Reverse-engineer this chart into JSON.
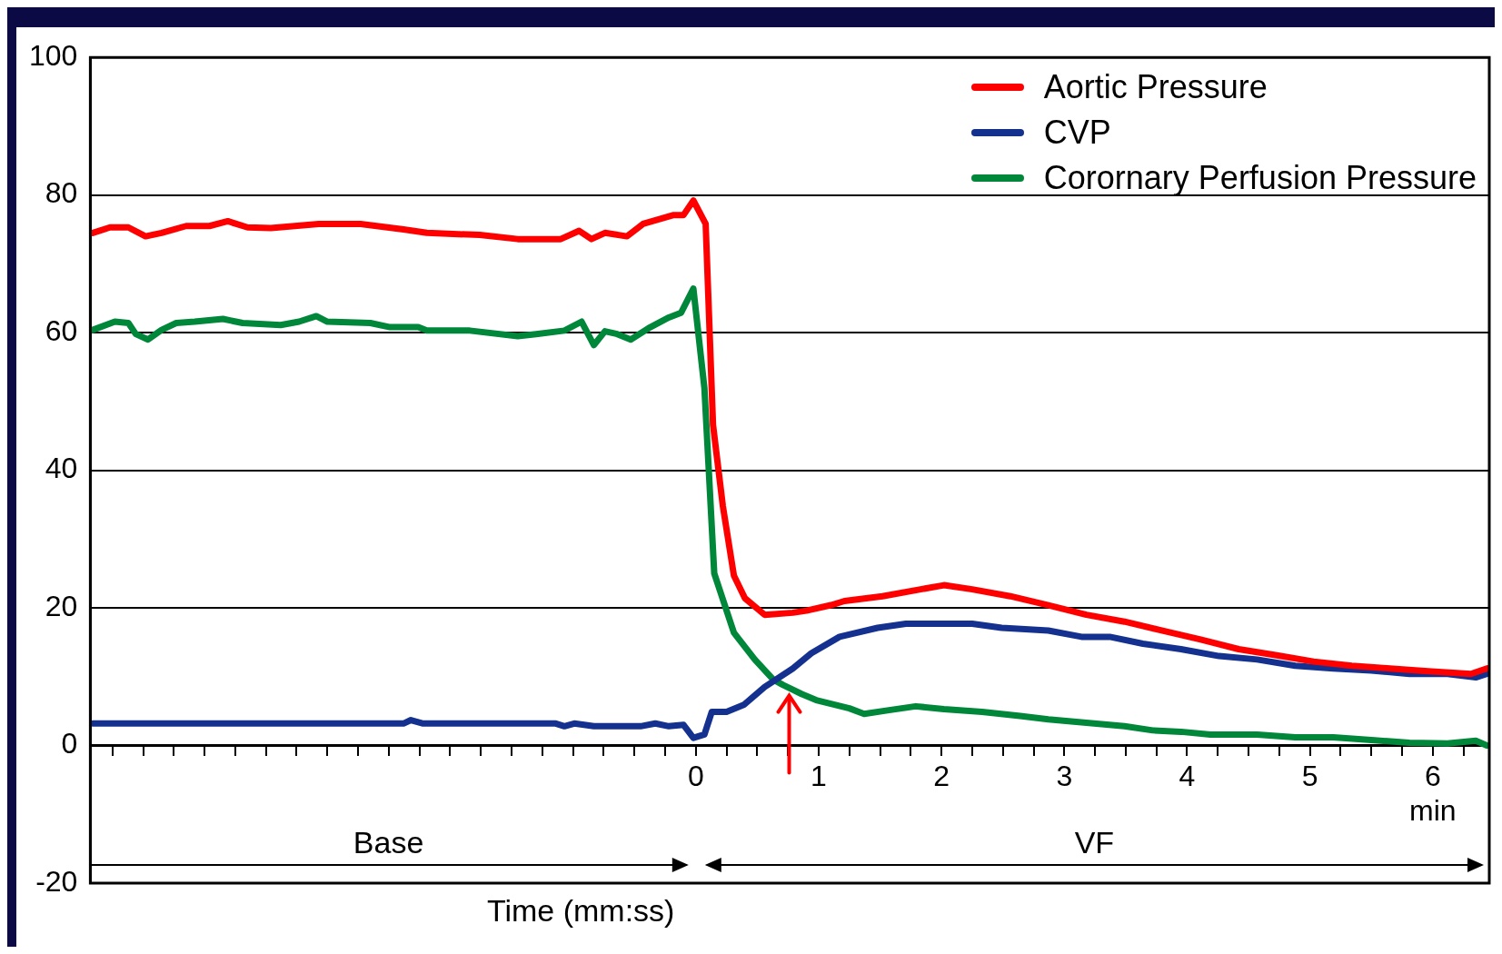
{
  "chart_data": {
    "type": "line",
    "xlabel": "Time (mm:ss)",
    "xlim": [
      -4.93,
      6.46
    ],
    "ylim": [
      -20,
      100
    ],
    "yticks": [
      -20,
      0,
      20,
      40,
      60,
      80,
      100
    ],
    "xticks": [
      {
        "value": -4.75,
        "label": null
      },
      {
        "value": -4.5,
        "label": null
      },
      {
        "value": -4.25,
        "label": null
      },
      {
        "value": -4,
        "label": null
      },
      {
        "value": -3.75,
        "label": null
      },
      {
        "value": -3.5,
        "label": null
      },
      {
        "value": -3.25,
        "label": null
      },
      {
        "value": -3,
        "label": null
      },
      {
        "value": -2.75,
        "label": null
      },
      {
        "value": -2.5,
        "label": null
      },
      {
        "value": -2.25,
        "label": null
      },
      {
        "value": -2,
        "label": null
      },
      {
        "value": -1.75,
        "label": null
      },
      {
        "value": -1.5,
        "label": null
      },
      {
        "value": -1.25,
        "label": null
      },
      {
        "value": -1,
        "label": null
      },
      {
        "value": -0.75,
        "label": null
      },
      {
        "value": -0.5,
        "label": null
      },
      {
        "value": -0.25,
        "label": null
      },
      0,
      {
        "value": 0.25,
        "label": null
      },
      {
        "value": 0.5,
        "label": null
      },
      {
        "value": 0.75,
        "label": null
      },
      1,
      {
        "value": 1.25,
        "label": null
      },
      {
        "value": 1.5,
        "label": null
      },
      {
        "value": 1.75,
        "label": null
      },
      2,
      {
        "value": 2.25,
        "label": null
      },
      {
        "value": 2.5,
        "label": null
      },
      {
        "value": 2.75,
        "label": null
      },
      3,
      {
        "value": 3.25,
        "label": null
      },
      {
        "value": 3.5,
        "label": null
      },
      {
        "value": 3.75,
        "label": null
      },
      4,
      {
        "value": 4.25,
        "label": null
      },
      {
        "value": 4.5,
        "label": null
      },
      {
        "value": 4.75,
        "label": null
      },
      5,
      {
        "value": 5.25,
        "label": null
      },
      {
        "value": 5.5,
        "label": null
      },
      {
        "value": 5.75,
        "label": null
      },
      {
        "value": 6,
        "label": "6\nmin"
      },
      {
        "value": 6.25,
        "label": null
      }
    ],
    "grid": "y",
    "legend": "top right",
    "marker": "none",
    "line_style": "solid",
    "series": [
      {
        "name": "Aortic Pressure",
        "color": "#ff0000",
        "x": [
          -4.91,
          -4.77,
          -4.62,
          -4.48,
          -4.35,
          -4.15,
          -3.96,
          -3.81,
          -3.65,
          -3.46,
          -3.07,
          -2.73,
          -2.38,
          -2.19,
          -1.76,
          -1.45,
          -1.1,
          -0.95,
          -0.85,
          -0.74,
          -0.56,
          -0.43,
          -0.18,
          -0.1,
          -0.02,
          0.08,
          0.14,
          0.22,
          0.31,
          0.4,
          0.56,
          0.79,
          0.9,
          1.1,
          1.21,
          1.52,
          1.83,
          2.02,
          2.25,
          2.56,
          2.87,
          3.18,
          3.49,
          3.8,
          4.11,
          4.42,
          4.73,
          5.03,
          5.34,
          5.65,
          5.96,
          6.31,
          6.44
        ],
        "values": [
          74.5,
          75.3,
          75.3,
          74,
          74.5,
          75.5,
          75.5,
          76.2,
          75.3,
          75.2,
          75.8,
          75.8,
          75,
          74.5,
          74.2,
          73.6,
          73.6,
          74.8,
          73.6,
          74.5,
          74,
          75.8,
          77.1,
          77.1,
          79.2,
          75.8,
          46.6,
          34.8,
          24.7,
          21.4,
          19,
          19.3,
          19.6,
          20.4,
          21,
          21.7,
          22.7,
          23.3,
          22.7,
          21.7,
          20.4,
          19,
          18,
          16.7,
          15.4,
          14,
          13.1,
          12.2,
          11.6,
          11.2,
          10.8,
          10.4,
          11.2
        ]
      },
      {
        "name": "CVP",
        "color": "#14318f",
        "x": [
          -4.91,
          -2.38,
          -2.32,
          -2.22,
          -1.14,
          -1.07,
          -0.99,
          -0.83,
          -0.45,
          -0.33,
          -0.22,
          -0.1,
          -0.02,
          0.07,
          0.13,
          0.25,
          0.39,
          0.56,
          0.79,
          0.94,
          1.17,
          1.48,
          1.71,
          1.95,
          2.25,
          2.49,
          2.87,
          3.14,
          3.37,
          3.64,
          3.95,
          4.26,
          4.57,
          4.88,
          5.19,
          5.5,
          5.81,
          6.12,
          6.35,
          6.44
        ],
        "values": [
          3.2,
          3.2,
          3.7,
          3.2,
          3.2,
          2.8,
          3.2,
          2.8,
          2.8,
          3.2,
          2.8,
          3,
          1.1,
          1.6,
          4.9,
          4.9,
          5.9,
          8.5,
          11.2,
          13.4,
          15.8,
          17.1,
          17.7,
          17.7,
          17.7,
          17.1,
          16.7,
          15.8,
          15.8,
          14.8,
          14,
          13,
          12.5,
          11.6,
          11.2,
          10.9,
          10.4,
          10.4,
          9.9,
          10.4
        ]
      },
      {
        "name": "Corornary Perfusion Pressure",
        "color": "#00873a",
        "x": [
          -4.91,
          -4.73,
          -4.62,
          -4.56,
          -4.46,
          -4.35,
          -4.23,
          -4.08,
          -3.85,
          -3.69,
          -3.38,
          -3.23,
          -3.09,
          -3,
          -2.65,
          -2.49,
          -2.26,
          -2.19,
          -1.84,
          -1.45,
          -1.3,
          -1.07,
          -0.93,
          -0.83,
          -0.74,
          -0.64,
          -0.53,
          -0.37,
          -0.22,
          -0.12,
          -0.02,
          0.07,
          0.15,
          0.31,
          0.48,
          0.63,
          0.71,
          0.86,
          0.98,
          1.25,
          1.37,
          1.56,
          1.79,
          2.02,
          2.33,
          2.64,
          2.87,
          3.18,
          3.49,
          3.72,
          3.95,
          4.19,
          4.57,
          4.88,
          5.19,
          5.5,
          5.81,
          6.12,
          6.35,
          6.44
        ],
        "values": [
          60.4,
          61.6,
          61.4,
          59.8,
          59,
          60.4,
          61.4,
          61.6,
          62,
          61.4,
          61.1,
          61.6,
          62.4,
          61.6,
          61.4,
          60.8,
          60.8,
          60.3,
          60.3,
          59.5,
          59.8,
          60.3,
          61.6,
          58.2,
          60.2,
          59.8,
          59,
          60.8,
          62.2,
          62.9,
          66.4,
          51.9,
          25,
          16.4,
          12.5,
          9.6,
          8.8,
          7.5,
          6.6,
          5.4,
          4.6,
          5.1,
          5.7,
          5.3,
          4.9,
          4.3,
          3.8,
          3.3,
          2.8,
          2.2,
          2,
          1.6,
          1.6,
          1.2,
          1.2,
          0.8,
          0.4,
          0.3,
          0.7,
          0
        ]
      }
    ],
    "ref_lines": [
      {
        "axis": "x",
        "value": 0.76,
        "color": "#ff0000"
      }
    ],
    "annotations": [
      "Base",
      "VF"
    ]
  }
}
